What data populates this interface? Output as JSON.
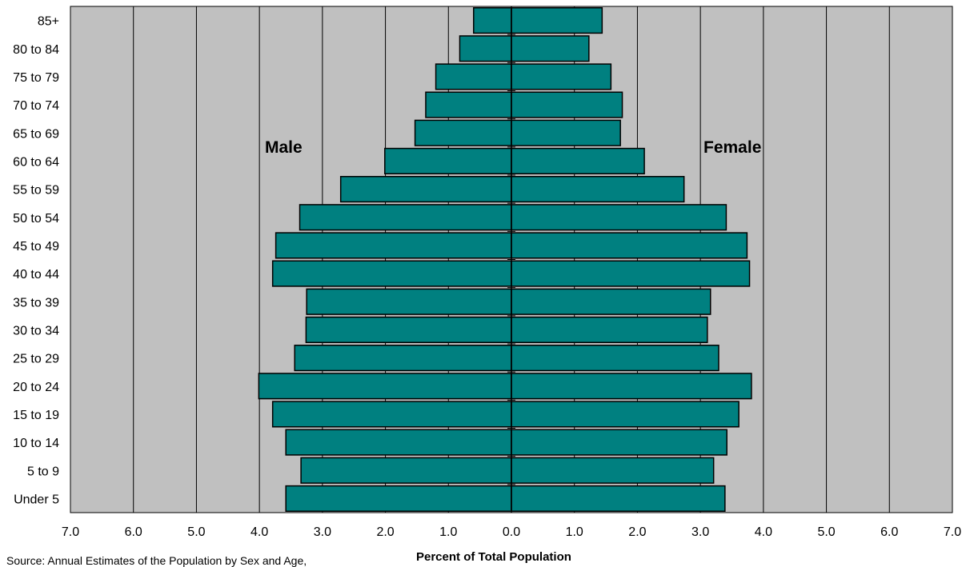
{
  "chart_data": {
    "type": "bar",
    "orientation": "horizontal",
    "subtype": "population-pyramid",
    "categories": [
      "Under 5",
      "5 to 9",
      "10 to 14",
      "15 to 19",
      "20 to 24",
      "25 to 29",
      "30 to 34",
      "35 to 39",
      "40 to 44",
      "45 to 49",
      "50 to 54",
      "55 to 59",
      "60 to 64",
      "65 to 69",
      "70 to 74",
      "75 to 79",
      "80 to 84",
      "85+"
    ],
    "series": [
      {
        "name": "Male",
        "values": [
          3.58,
          3.34,
          3.58,
          3.79,
          4.01,
          3.44,
          3.26,
          3.25,
          3.79,
          3.74,
          3.36,
          2.71,
          2.01,
          1.53,
          1.36,
          1.2,
          0.82,
          0.6
        ]
      },
      {
        "name": "Female",
        "values": [
          3.39,
          3.21,
          3.42,
          3.61,
          3.81,
          3.29,
          3.11,
          3.16,
          3.78,
          3.74,
          3.41,
          2.74,
          2.11,
          1.73,
          1.76,
          1.58,
          1.23,
          1.44
        ]
      }
    ],
    "xlabel": "Percent of Total Population",
    "ylabel": "",
    "xlim": [
      -7,
      7
    ],
    "x_ticks": [
      "7.0",
      "6.0",
      "5.0",
      "4.0",
      "3.0",
      "2.0",
      "1.0",
      "0.0",
      "1.0",
      "2.0",
      "3.0",
      "4.0",
      "5.0",
      "6.0",
      "7.0"
    ],
    "annotations": [
      "Male",
      "Female"
    ],
    "source": "Source: Annual Estimates of the Population by Sex and Age,",
    "grid": true,
    "colors": {
      "bar": "#008080",
      "plot_bg": "#c0c0c0",
      "border": "#000000"
    }
  }
}
